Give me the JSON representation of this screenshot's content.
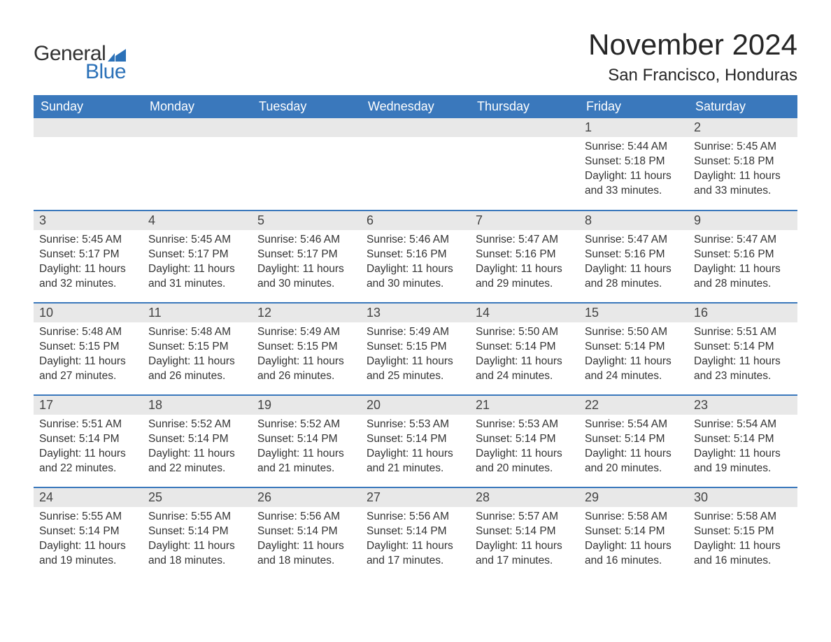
{
  "logo": {
    "word_general": "General",
    "word_blue": "Blue",
    "flag_color": "#2b71b8"
  },
  "header": {
    "month_title": "November 2024",
    "location": "San Francisco, Honduras"
  },
  "colors": {
    "header_bg": "#3a78bc",
    "header_text": "#ffffff",
    "daynum_bg": "#e8e8e8",
    "row_divider": "#3a78bc",
    "body_text": "#333333",
    "page_bg": "#ffffff"
  },
  "calendar": {
    "weekdays": [
      "Sunday",
      "Monday",
      "Tuesday",
      "Wednesday",
      "Thursday",
      "Friday",
      "Saturday"
    ],
    "weeks": [
      [
        null,
        null,
        null,
        null,
        null,
        {
          "day": "1",
          "sunrise": "Sunrise: 5:44 AM",
          "sunset": "Sunset: 5:18 PM",
          "daylight1": "Daylight: 11 hours",
          "daylight2": "and 33 minutes."
        },
        {
          "day": "2",
          "sunrise": "Sunrise: 5:45 AM",
          "sunset": "Sunset: 5:18 PM",
          "daylight1": "Daylight: 11 hours",
          "daylight2": "and 33 minutes."
        }
      ],
      [
        {
          "day": "3",
          "sunrise": "Sunrise: 5:45 AM",
          "sunset": "Sunset: 5:17 PM",
          "daylight1": "Daylight: 11 hours",
          "daylight2": "and 32 minutes."
        },
        {
          "day": "4",
          "sunrise": "Sunrise: 5:45 AM",
          "sunset": "Sunset: 5:17 PM",
          "daylight1": "Daylight: 11 hours",
          "daylight2": "and 31 minutes."
        },
        {
          "day": "5",
          "sunrise": "Sunrise: 5:46 AM",
          "sunset": "Sunset: 5:17 PM",
          "daylight1": "Daylight: 11 hours",
          "daylight2": "and 30 minutes."
        },
        {
          "day": "6",
          "sunrise": "Sunrise: 5:46 AM",
          "sunset": "Sunset: 5:16 PM",
          "daylight1": "Daylight: 11 hours",
          "daylight2": "and 30 minutes."
        },
        {
          "day": "7",
          "sunrise": "Sunrise: 5:47 AM",
          "sunset": "Sunset: 5:16 PM",
          "daylight1": "Daylight: 11 hours",
          "daylight2": "and 29 minutes."
        },
        {
          "day": "8",
          "sunrise": "Sunrise: 5:47 AM",
          "sunset": "Sunset: 5:16 PM",
          "daylight1": "Daylight: 11 hours",
          "daylight2": "and 28 minutes."
        },
        {
          "day": "9",
          "sunrise": "Sunrise: 5:47 AM",
          "sunset": "Sunset: 5:16 PM",
          "daylight1": "Daylight: 11 hours",
          "daylight2": "and 28 minutes."
        }
      ],
      [
        {
          "day": "10",
          "sunrise": "Sunrise: 5:48 AM",
          "sunset": "Sunset: 5:15 PM",
          "daylight1": "Daylight: 11 hours",
          "daylight2": "and 27 minutes."
        },
        {
          "day": "11",
          "sunrise": "Sunrise: 5:48 AM",
          "sunset": "Sunset: 5:15 PM",
          "daylight1": "Daylight: 11 hours",
          "daylight2": "and 26 minutes."
        },
        {
          "day": "12",
          "sunrise": "Sunrise: 5:49 AM",
          "sunset": "Sunset: 5:15 PM",
          "daylight1": "Daylight: 11 hours",
          "daylight2": "and 26 minutes."
        },
        {
          "day": "13",
          "sunrise": "Sunrise: 5:49 AM",
          "sunset": "Sunset: 5:15 PM",
          "daylight1": "Daylight: 11 hours",
          "daylight2": "and 25 minutes."
        },
        {
          "day": "14",
          "sunrise": "Sunrise: 5:50 AM",
          "sunset": "Sunset: 5:14 PM",
          "daylight1": "Daylight: 11 hours",
          "daylight2": "and 24 minutes."
        },
        {
          "day": "15",
          "sunrise": "Sunrise: 5:50 AM",
          "sunset": "Sunset: 5:14 PM",
          "daylight1": "Daylight: 11 hours",
          "daylight2": "and 24 minutes."
        },
        {
          "day": "16",
          "sunrise": "Sunrise: 5:51 AM",
          "sunset": "Sunset: 5:14 PM",
          "daylight1": "Daylight: 11 hours",
          "daylight2": "and 23 minutes."
        }
      ],
      [
        {
          "day": "17",
          "sunrise": "Sunrise: 5:51 AM",
          "sunset": "Sunset: 5:14 PM",
          "daylight1": "Daylight: 11 hours",
          "daylight2": "and 22 minutes."
        },
        {
          "day": "18",
          "sunrise": "Sunrise: 5:52 AM",
          "sunset": "Sunset: 5:14 PM",
          "daylight1": "Daylight: 11 hours",
          "daylight2": "and 22 minutes."
        },
        {
          "day": "19",
          "sunrise": "Sunrise: 5:52 AM",
          "sunset": "Sunset: 5:14 PM",
          "daylight1": "Daylight: 11 hours",
          "daylight2": "and 21 minutes."
        },
        {
          "day": "20",
          "sunrise": "Sunrise: 5:53 AM",
          "sunset": "Sunset: 5:14 PM",
          "daylight1": "Daylight: 11 hours",
          "daylight2": "and 21 minutes."
        },
        {
          "day": "21",
          "sunrise": "Sunrise: 5:53 AM",
          "sunset": "Sunset: 5:14 PM",
          "daylight1": "Daylight: 11 hours",
          "daylight2": "and 20 minutes."
        },
        {
          "day": "22",
          "sunrise": "Sunrise: 5:54 AM",
          "sunset": "Sunset: 5:14 PM",
          "daylight1": "Daylight: 11 hours",
          "daylight2": "and 20 minutes."
        },
        {
          "day": "23",
          "sunrise": "Sunrise: 5:54 AM",
          "sunset": "Sunset: 5:14 PM",
          "daylight1": "Daylight: 11 hours",
          "daylight2": "and 19 minutes."
        }
      ],
      [
        {
          "day": "24",
          "sunrise": "Sunrise: 5:55 AM",
          "sunset": "Sunset: 5:14 PM",
          "daylight1": "Daylight: 11 hours",
          "daylight2": "and 19 minutes."
        },
        {
          "day": "25",
          "sunrise": "Sunrise: 5:55 AM",
          "sunset": "Sunset: 5:14 PM",
          "daylight1": "Daylight: 11 hours",
          "daylight2": "and 18 minutes."
        },
        {
          "day": "26",
          "sunrise": "Sunrise: 5:56 AM",
          "sunset": "Sunset: 5:14 PM",
          "daylight1": "Daylight: 11 hours",
          "daylight2": "and 18 minutes."
        },
        {
          "day": "27",
          "sunrise": "Sunrise: 5:56 AM",
          "sunset": "Sunset: 5:14 PM",
          "daylight1": "Daylight: 11 hours",
          "daylight2": "and 17 minutes."
        },
        {
          "day": "28",
          "sunrise": "Sunrise: 5:57 AM",
          "sunset": "Sunset: 5:14 PM",
          "daylight1": "Daylight: 11 hours",
          "daylight2": "and 17 minutes."
        },
        {
          "day": "29",
          "sunrise": "Sunrise: 5:58 AM",
          "sunset": "Sunset: 5:14 PM",
          "daylight1": "Daylight: 11 hours",
          "daylight2": "and 16 minutes."
        },
        {
          "day": "30",
          "sunrise": "Sunrise: 5:58 AM",
          "sunset": "Sunset: 5:15 PM",
          "daylight1": "Daylight: 11 hours",
          "daylight2": "and 16 minutes."
        }
      ]
    ]
  }
}
